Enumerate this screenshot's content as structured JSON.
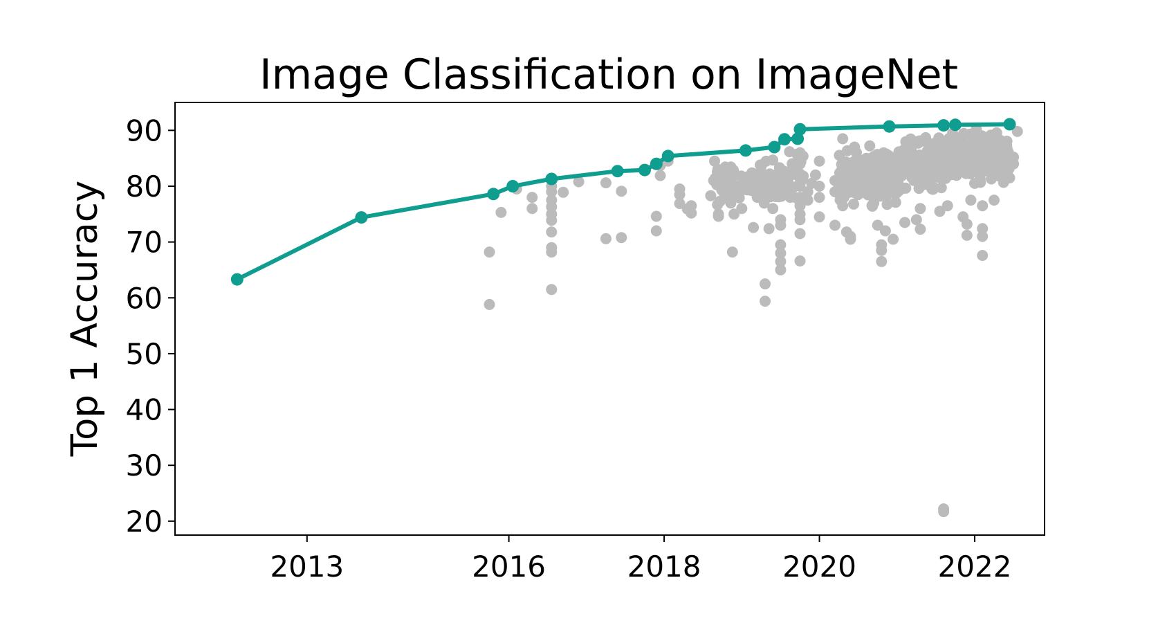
{
  "chart_data": {
    "type": "scatter",
    "title": "Image Classification on ImageNet",
    "xlabel": "",
    "ylabel": "Top 1 Accuracy",
    "xlim": [
      2011.7,
      2022.9
    ],
    "ylim": [
      17.5,
      95.0
    ],
    "grid": false,
    "x_ticks": [
      {
        "value": 2013.4,
        "label": "2013"
      },
      {
        "value": 2016.0,
        "label": "2016"
      },
      {
        "value": 2018.0,
        "label": "2018"
      },
      {
        "value": 2020.0,
        "label": "2020"
      },
      {
        "value": 2022.0,
        "label": "2022"
      }
    ],
    "y_ticks": [
      {
        "value": 20,
        "label": "20"
      },
      {
        "value": 30,
        "label": "30"
      },
      {
        "value": 40,
        "label": "40"
      },
      {
        "value": 50,
        "label": "50"
      },
      {
        "value": 60,
        "label": "60"
      },
      {
        "value": 70,
        "label": "70"
      },
      {
        "value": 80,
        "label": "80"
      },
      {
        "value": 90,
        "label": "90"
      }
    ],
    "colors": {
      "sota": "#0f9d8f",
      "other": "#bbbbbb",
      "axis": "#000000"
    },
    "series": [
      {
        "kind": "sota-line",
        "points": [
          [
            2012.5,
            63.3
          ],
          [
            2014.1,
            74.4
          ],
          [
            2015.8,
            78.6
          ],
          [
            2016.05,
            80.0
          ],
          [
            2016.55,
            81.3
          ],
          [
            2017.4,
            82.7
          ],
          [
            2017.75,
            82.9
          ],
          [
            2017.9,
            84.0
          ],
          [
            2018.05,
            85.4
          ],
          [
            2019.05,
            86.4
          ],
          [
            2019.42,
            87.0
          ],
          [
            2019.55,
            88.4
          ],
          [
            2019.72,
            88.5
          ],
          [
            2019.75,
            90.2
          ],
          [
            2020.9,
            90.7
          ],
          [
            2021.6,
            90.9
          ],
          [
            2021.75,
            91.0
          ],
          [
            2022.45,
            91.1
          ]
        ]
      },
      {
        "kind": "other-models",
        "points": [
          [
            2015.75,
            58.8
          ],
          [
            2015.75,
            68.2
          ],
          [
            2015.9,
            75.3
          ],
          [
            2016.1,
            79.5
          ],
          [
            2016.3,
            78.0
          ],
          [
            2016.3,
            76.0
          ],
          [
            2016.55,
            61.5
          ],
          [
            2016.55,
            68.2
          ],
          [
            2016.55,
            69.0
          ],
          [
            2016.55,
            71.8
          ],
          [
            2016.55,
            73.9
          ],
          [
            2016.55,
            75.0
          ],
          [
            2016.55,
            76.3
          ],
          [
            2016.55,
            77.5
          ],
          [
            2016.55,
            79.0
          ],
          [
            2016.55,
            80.0
          ],
          [
            2016.7,
            78.9
          ],
          [
            2016.9,
            80.8
          ],
          [
            2017.25,
            70.6
          ],
          [
            2017.25,
            80.6
          ],
          [
            2017.45,
            70.8
          ],
          [
            2017.45,
            79.1
          ],
          [
            2017.9,
            72.0
          ],
          [
            2017.9,
            74.6
          ],
          [
            2017.95,
            81.9
          ],
          [
            2017.95,
            83.7
          ],
          [
            2018.05,
            84.5
          ],
          [
            2018.2,
            76.9
          ],
          [
            2018.2,
            78.5
          ],
          [
            2018.2,
            79.5
          ],
          [
            2018.3,
            75.9
          ],
          [
            2018.35,
            76.5
          ],
          [
            2018.35,
            75.2
          ],
          [
            2018.6,
            78.3
          ],
          [
            2018.65,
            84.5
          ],
          [
            2018.7,
            74.6
          ],
          [
            2018.7,
            75.0
          ],
          [
            2018.72,
            77.3
          ],
          [
            2018.85,
            83.3
          ],
          [
            2018.88,
            68.2
          ],
          [
            2018.9,
            75.0
          ],
          [
            2018.95,
            80.0
          ],
          [
            2019.0,
            76.0
          ],
          [
            2019.05,
            79.4
          ],
          [
            2019.1,
            81.2
          ],
          [
            2019.15,
            72.6
          ],
          [
            2019.2,
            78.0
          ],
          [
            2019.25,
            82.5
          ],
          [
            2019.25,
            83.6
          ],
          [
            2019.3,
            62.5
          ],
          [
            2019.3,
            59.4
          ],
          [
            2019.35,
            72.4
          ],
          [
            2019.4,
            76.0
          ],
          [
            2019.5,
            69.5
          ],
          [
            2019.5,
            68.0
          ],
          [
            2019.5,
            66.5
          ],
          [
            2019.5,
            65.0
          ],
          [
            2019.5,
            73.0
          ],
          [
            2019.5,
            74.0
          ],
          [
            2019.5,
            78.5
          ],
          [
            2019.5,
            80.0
          ],
          [
            2019.5,
            81.5
          ],
          [
            2019.75,
            66.6
          ],
          [
            2019.75,
            71.5
          ],
          [
            2019.75,
            74.0
          ],
          [
            2019.75,
            75.0
          ],
          [
            2019.75,
            76.5
          ],
          [
            2019.75,
            78.0
          ],
          [
            2019.75,
            80.0
          ],
          [
            2019.75,
            82.0
          ],
          [
            2019.75,
            84.0
          ],
          [
            2019.75,
            86.0
          ],
          [
            2019.85,
            77.5
          ],
          [
            2019.85,
            79.0
          ],
          [
            2019.9,
            80.5
          ],
          [
            2019.95,
            82.0
          ],
          [
            2020.0,
            74.5
          ],
          [
            2020.0,
            78.0
          ],
          [
            2020.0,
            80.0
          ],
          [
            2020.0,
            84.5
          ],
          [
            2020.2,
            73.0
          ],
          [
            2020.2,
            79.0
          ],
          [
            2020.2,
            81.0
          ],
          [
            2020.3,
            88.5
          ],
          [
            2020.3,
            76.5
          ],
          [
            2020.35,
            71.8
          ],
          [
            2020.4,
            71.0
          ],
          [
            2020.4,
            70.5
          ],
          [
            2020.5,
            78.5
          ],
          [
            2020.6,
            80.5
          ],
          [
            2020.7,
            77.0
          ],
          [
            2020.75,
            73.0
          ],
          [
            2020.8,
            66.5
          ],
          [
            2020.8,
            68.5
          ],
          [
            2020.8,
            69.5
          ],
          [
            2020.85,
            72.0
          ],
          [
            2020.95,
            70.5
          ],
          [
            2020.95,
            82.5
          ],
          [
            2021.1,
            73.5
          ],
          [
            2021.25,
            74.0
          ],
          [
            2021.3,
            72.3
          ],
          [
            2021.3,
            76.0
          ],
          [
            2021.45,
            79.5
          ],
          [
            2021.55,
            75.5
          ],
          [
            2021.65,
            76.5
          ],
          [
            2021.6,
            22.2
          ],
          [
            2021.6,
            21.7
          ],
          [
            2021.85,
            74.5
          ],
          [
            2021.9,
            71.2
          ],
          [
            2021.9,
            73.2
          ],
          [
            2021.95,
            77.5
          ],
          [
            2022.1,
            76.5
          ],
          [
            2022.1,
            72.4
          ],
          [
            2022.1,
            71.0
          ],
          [
            2022.1,
            67.6
          ],
          [
            2022.25,
            77.5
          ],
          [
            2022.45,
            81.5
          ],
          [
            2022.5,
            84.0
          ],
          [
            2022.5,
            85.2
          ],
          [
            2022.55,
            89.8
          ],
          [
            2022.3,
            88.5
          ],
          [
            2022.25,
            85.0
          ],
          [
            2022.15,
            83.0
          ],
          [
            2022.0,
            86.5
          ],
          [
            2022.0,
            80.5
          ]
        ],
        "clusters": [
          {
            "x": [
              2018.6,
              2019.5
            ],
            "y": [
              75.5,
              85.0
            ],
            "n": 80
          },
          {
            "x": [
              2019.3,
              2019.8
            ],
            "y": [
              76.0,
              88.0
            ],
            "n": 45
          },
          {
            "x": [
              2020.25,
              2021.05
            ],
            "y": [
              75.5,
              88.5
            ],
            "n": 210
          },
          {
            "x": [
              2021.0,
              2021.65
            ],
            "y": [
              78.0,
              90.0
            ],
            "n": 150
          },
          {
            "x": [
              2021.65,
              2022.45
            ],
            "y": [
              79.0,
              91.0
            ],
            "n": 220
          }
        ]
      }
    ]
  }
}
